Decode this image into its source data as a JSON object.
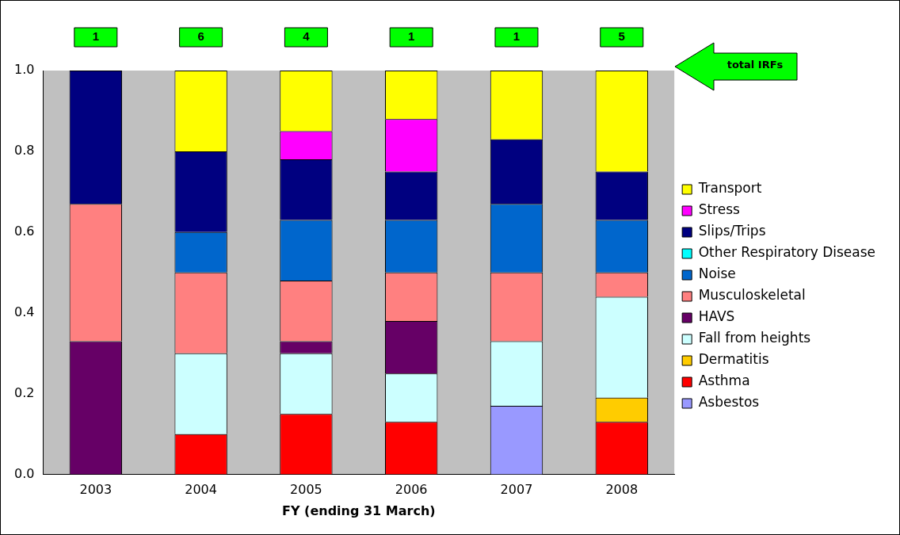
{
  "chart_data": {
    "type": "bar",
    "stacked": true,
    "xlabel": "FY (ending 31 March)",
    "categories": [
      "2003",
      "2004",
      "2005",
      "2006",
      "2007",
      "2008"
    ],
    "ylim": [
      0,
      1
    ],
    "yticks": [
      {
        "value": 0,
        "label": "0.0"
      },
      {
        "value": 0.2,
        "label": "0.2"
      },
      {
        "value": 0.4,
        "label": "0.4"
      },
      {
        "value": 0.6,
        "label": "0.6"
      },
      {
        "value": 0.8,
        "label": "0.8"
      },
      {
        "value": 1,
        "label": "1.0"
      }
    ],
    "series": [
      {
        "name": "Asbestos",
        "color": "#9999ff",
        "values": [
          0,
          0,
          0,
          0,
          0.17,
          0
        ]
      },
      {
        "name": "Asthma",
        "color": "#ff0000",
        "values": [
          0,
          0.1,
          0.15,
          0.13,
          0,
          0.13
        ]
      },
      {
        "name": "Dermatitis",
        "color": "#ffcc00",
        "values": [
          0,
          0,
          0,
          0,
          0,
          0.06
        ]
      },
      {
        "name": "Fall from heights",
        "color": "#ccffff",
        "values": [
          0,
          0.2,
          0.15,
          0.12,
          0.16,
          0.25
        ]
      },
      {
        "name": "HAVS",
        "color": "#660066",
        "values": [
          0.33,
          0,
          0.03,
          0.13,
          0,
          0
        ]
      },
      {
        "name": "Musculoskeletal",
        "color": "#ff8080",
        "values": [
          0.34,
          0.2,
          0.15,
          0.12,
          0.17,
          0.06
        ]
      },
      {
        "name": "Noise",
        "color": "#0066cc",
        "values": [
          0,
          0.1,
          0.15,
          0.13,
          0.17,
          0.13
        ]
      },
      {
        "name": "Other Respiratory Disease",
        "color": "#00ffff",
        "values": [
          0,
          0,
          0,
          0,
          0,
          0
        ]
      },
      {
        "name": "Slips/Trips",
        "color": "#000080",
        "values": [
          0.33,
          0.2,
          0.15,
          0.12,
          0.16,
          0.12
        ]
      },
      {
        "name": "Stress",
        "color": "#ff00ff",
        "values": [
          0,
          0,
          0.07,
          0.13,
          0,
          0
        ]
      },
      {
        "name": "Transport",
        "color": "#ffff00",
        "values": [
          0,
          0.2,
          0.15,
          0.12,
          0.17,
          0.25
        ]
      }
    ],
    "totals": [
      "1",
      "6",
      "4",
      "1",
      "1",
      "5"
    ],
    "annotations": [
      "total IRFs"
    ],
    "legend": "right",
    "grid": false
  }
}
